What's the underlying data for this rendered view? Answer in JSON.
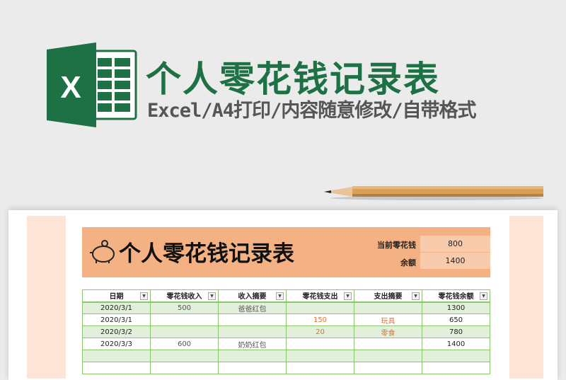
{
  "banner": {
    "title": "个人零花钱记录表",
    "subtitle": "Excel/A4打印/内容随意修改/自带格式",
    "logo_letter": "X",
    "accent": "#1e7145"
  },
  "sheet": {
    "title": "个人零花钱记录表",
    "summary": [
      {
        "label": "当前零花钱",
        "value": "800"
      },
      {
        "label": "余额",
        "value": "1400"
      }
    ],
    "headers": [
      "日期",
      "零花钱收入",
      "收入摘要",
      "零花钱支出",
      "支出摘要",
      "零花钱余额"
    ],
    "rows": [
      [
        "2020/3/1",
        "500",
        "爸爸红包",
        "",
        "",
        "1300"
      ],
      [
        "2020/3/1",
        "",
        "",
        "150",
        "玩具",
        "650"
      ],
      [
        "2020/3/2",
        "",
        "",
        "20",
        "零食",
        "780"
      ],
      [
        "2020/3/3",
        "600",
        "奶奶红包",
        "",
        "",
        "1400"
      ],
      [
        "",
        "",
        "",
        "",
        "",
        ""
      ],
      [
        "",
        "",
        "",
        "",
        "",
        ""
      ]
    ],
    "colors": {
      "header_bg": "#f4b183",
      "row_alt": "#e2efda",
      "border": "#8dc56a",
      "expense": "#d9733a"
    }
  }
}
